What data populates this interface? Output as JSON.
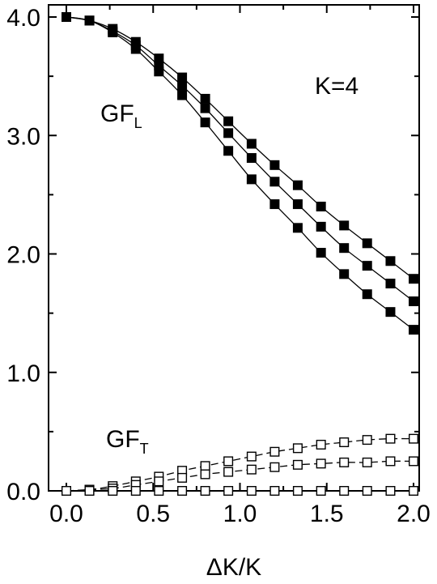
{
  "chart_data": {
    "type": "scatter",
    "xlabel": "ΔK/K",
    "ylabel": "",
    "xlim": [
      0.0,
      2.0
    ],
    "ylim": [
      0.0,
      4.0
    ],
    "x_ticks": [
      "0.0",
      "0.5",
      "1.0",
      "1.5",
      "2.0"
    ],
    "y_ticks": [
      "0.0",
      "1.0",
      "2.0",
      "3.0",
      "4.0"
    ],
    "x_tick_values": [
      0.0,
      0.5,
      1.0,
      1.5,
      2.0
    ],
    "y_tick_values": [
      0.0,
      1.0,
      2.0,
      3.0,
      4.0
    ],
    "grid": false,
    "annotations": {
      "k_label": "K=4",
      "gfl_main": "GF",
      "gfl_sub": "L",
      "gft_main": "GF",
      "gft_sub": "T"
    },
    "series": [
      {
        "marker": "filled-square",
        "line": "solid",
        "group": "GF_L",
        "x": [
          0.0,
          0.133,
          0.267,
          0.4,
          0.533,
          0.667,
          0.8,
          0.933,
          1.067,
          1.2,
          1.333,
          1.467,
          1.6,
          1.733,
          1.867,
          2.0
        ],
        "y": [
          4.0,
          3.97,
          3.9,
          3.79,
          3.65,
          3.49,
          3.31,
          3.12,
          2.93,
          2.75,
          2.58,
          2.4,
          2.24,
          2.09,
          1.94,
          1.79
        ]
      },
      {
        "marker": "filled-square",
        "line": "solid",
        "group": "GF_L",
        "x": [
          0.0,
          0.133,
          0.267,
          0.4,
          0.533,
          0.667,
          0.8,
          0.933,
          1.067,
          1.2,
          1.333,
          1.467,
          1.6,
          1.733,
          1.867,
          2.0
        ],
        "y": [
          4.0,
          3.97,
          3.88,
          3.76,
          3.59,
          3.42,
          3.23,
          3.02,
          2.81,
          2.61,
          2.42,
          2.23,
          2.05,
          1.9,
          1.75,
          1.6
        ]
      },
      {
        "marker": "filled-square",
        "line": "solid",
        "group": "GF_L",
        "x": [
          0.0,
          0.133,
          0.267,
          0.4,
          0.533,
          0.667,
          0.8,
          0.933,
          1.067,
          1.2,
          1.333,
          1.467,
          1.6,
          1.733,
          1.867,
          2.0
        ],
        "y": [
          4.0,
          3.97,
          3.87,
          3.73,
          3.54,
          3.34,
          3.11,
          2.87,
          2.63,
          2.42,
          2.22,
          2.01,
          1.83,
          1.66,
          1.51,
          1.36
        ]
      },
      {
        "marker": "open-square",
        "line": "dashed",
        "group": "GF_T",
        "x": [
          0.0,
          0.133,
          0.267,
          0.4,
          0.533,
          0.667,
          0.8,
          0.933,
          1.067,
          1.2,
          1.333,
          1.467,
          1.6,
          1.733,
          1.867,
          2.0
        ],
        "y": [
          0.0,
          0.01,
          0.04,
          0.08,
          0.12,
          0.17,
          0.21,
          0.25,
          0.29,
          0.33,
          0.36,
          0.39,
          0.41,
          0.43,
          0.44,
          0.44
        ]
      },
      {
        "marker": "open-square",
        "line": "dashed",
        "group": "GF_T",
        "x": [
          0.0,
          0.133,
          0.267,
          0.4,
          0.533,
          0.667,
          0.8,
          0.933,
          1.067,
          1.2,
          1.333,
          1.467,
          1.6,
          1.733,
          1.867,
          2.0
        ],
        "y": [
          0.0,
          0.01,
          0.02,
          0.05,
          0.08,
          0.11,
          0.14,
          0.16,
          0.18,
          0.2,
          0.22,
          0.23,
          0.24,
          0.24,
          0.25,
          0.25
        ]
      },
      {
        "marker": "open-square",
        "line": "dashed",
        "group": "GF_T",
        "x": [
          0.0,
          0.133,
          0.267,
          0.4,
          0.533,
          0.667,
          0.8,
          0.933,
          1.067,
          1.2,
          1.333,
          1.467,
          1.6,
          1.733,
          1.867,
          2.0
        ],
        "y": [
          0.0,
          0.0,
          0.0,
          0.0,
          0.0,
          0.0,
          0.0,
          0.0,
          0.0,
          0.0,
          0.0,
          0.0,
          0.0,
          0.0,
          0.0,
          0.0
        ]
      }
    ]
  }
}
